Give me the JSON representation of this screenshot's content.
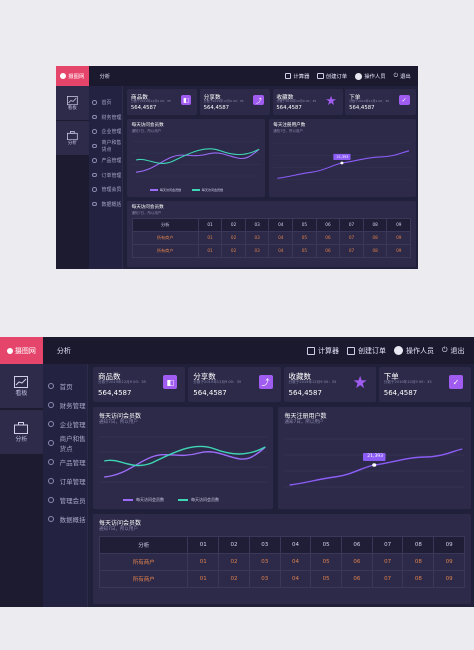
{
  "logo_text": "摄图网",
  "breadcrumb": "分析",
  "header": {
    "calculator": "计算器",
    "create_order": "创建订单",
    "operator": "操作人员",
    "logout": "退出"
  },
  "rail": [
    {
      "label": "看板",
      "icon": "chart-line-icon"
    },
    {
      "label": "分析",
      "icon": "briefcase-icon"
    }
  ],
  "menu": [
    "首页",
    "财务管理",
    "企业管理",
    "商户和售货点",
    "产品管理",
    "订单管理",
    "管理会员",
    "数据概括"
  ],
  "stats": [
    {
      "title": "商品数",
      "sub": "分数于2019年12月9 00：35",
      "value": "564,4587",
      "icon": "bag-icon"
    },
    {
      "title": "分享数",
      "sub": "分数于2019年12月9 00：35",
      "value": "564,4587",
      "icon": "share-icon"
    },
    {
      "title": "收藏数",
      "sub": "分数于2019年12月9 00：35",
      "value": "564,4587",
      "icon": "star-icon"
    },
    {
      "title": "下单",
      "sub": "分数于2019年12月9 00：35",
      "value": "564,4587",
      "icon": "cart-icon"
    }
  ],
  "visits": {
    "title": "每天访问会员数",
    "subtitle": "通知7日，所以用户",
    "legend": [
      "每天访问会员数",
      "每天访问会员数"
    ],
    "colors": [
      "#9b6cf7",
      "#3ed6b5"
    ]
  },
  "regs": {
    "title": "每天注册用户数",
    "subtitle": "通知7日，所以用户",
    "tooltip": "21,393",
    "color": "#8b5cf6"
  },
  "members": {
    "title": "每天访问会员数",
    "subtitle": "通知7日，所以用户",
    "headers": [
      "分析",
      "01",
      "02",
      "03",
      "04",
      "05",
      "06",
      "07",
      "08",
      "09"
    ],
    "rows": [
      [
        "所有商户",
        "01",
        "02",
        "03",
        "04",
        "05",
        "06",
        "07",
        "08",
        "09"
      ],
      [
        "所有商户",
        "01",
        "02",
        "03",
        "04",
        "05",
        "06",
        "07",
        "08",
        "09"
      ]
    ]
  }
}
